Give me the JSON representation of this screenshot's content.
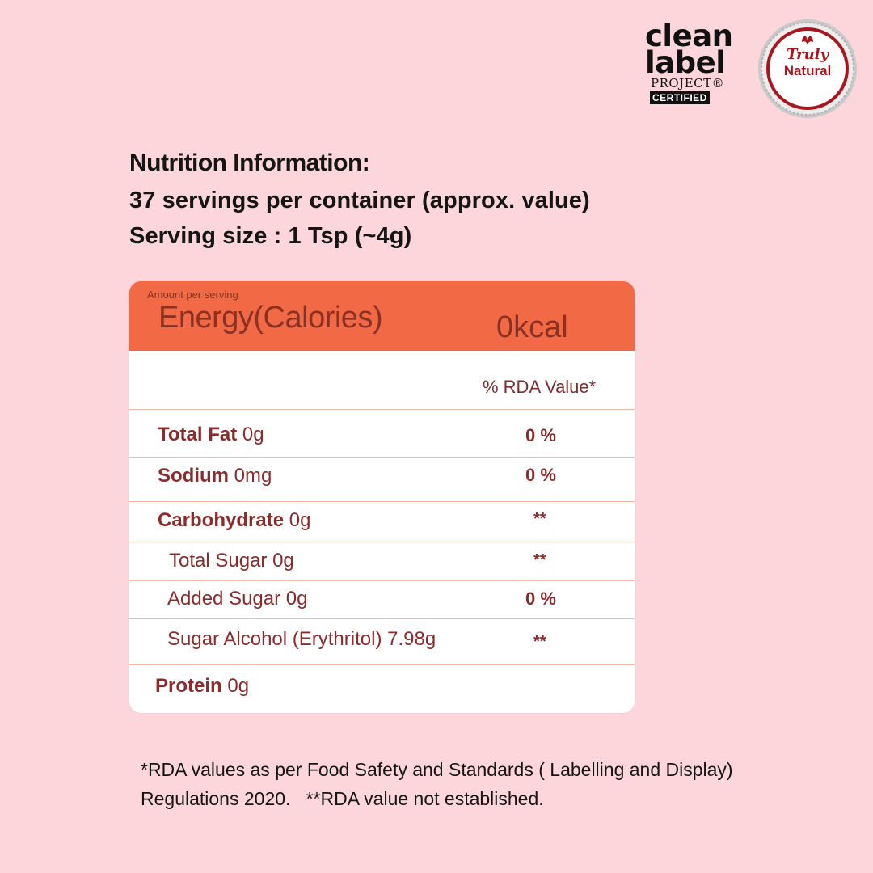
{
  "logos": {
    "clean_label": {
      "line1": "clean",
      "line2": "label",
      "line3": "PROJECT®",
      "line4": "CERTIFIED"
    },
    "truly_natural": {
      "line1": "Truly",
      "line2": "Natural"
    }
  },
  "heading": {
    "title": "Nutrition Information:",
    "servings": "37 servings per container (approx. value)",
    "serving_size": "Serving size : 1 Tsp (~4g)"
  },
  "table": {
    "amount_label": "Amount per serving",
    "energy_label": "Energy(Calories)",
    "energy_value": "0kcal",
    "rda_header": "% RDA Value*",
    "rows": [
      {
        "name": "Total Fat",
        "amount": "0g",
        "rda": "0 %"
      },
      {
        "name": "Sodium",
        "amount": "0mg",
        "rda": "0 %"
      },
      {
        "name": "Carbohydrate",
        "amount": "0g",
        "rda": "**"
      },
      {
        "name": "Total Sugar 0g",
        "amount": "",
        "rda": "**"
      },
      {
        "name": "Added Sugar 0g",
        "amount": "",
        "rda": "0 %"
      },
      {
        "name": "Sugar Alcohol (Erythritol) 7.98g",
        "amount": "",
        "rda": "**"
      },
      {
        "name": "Protein",
        "amount": "0g",
        "rda": ""
      }
    ]
  },
  "footnote": {
    "line1": "*RDA values as per Food Safety and Standards ( Labelling and Display)",
    "line2": "Regulations 2020.   **RDA value not established."
  },
  "colors": {
    "background": "#fcd6da",
    "header_orange": "#f26a45",
    "text_maroon": "#8a2c2c"
  }
}
